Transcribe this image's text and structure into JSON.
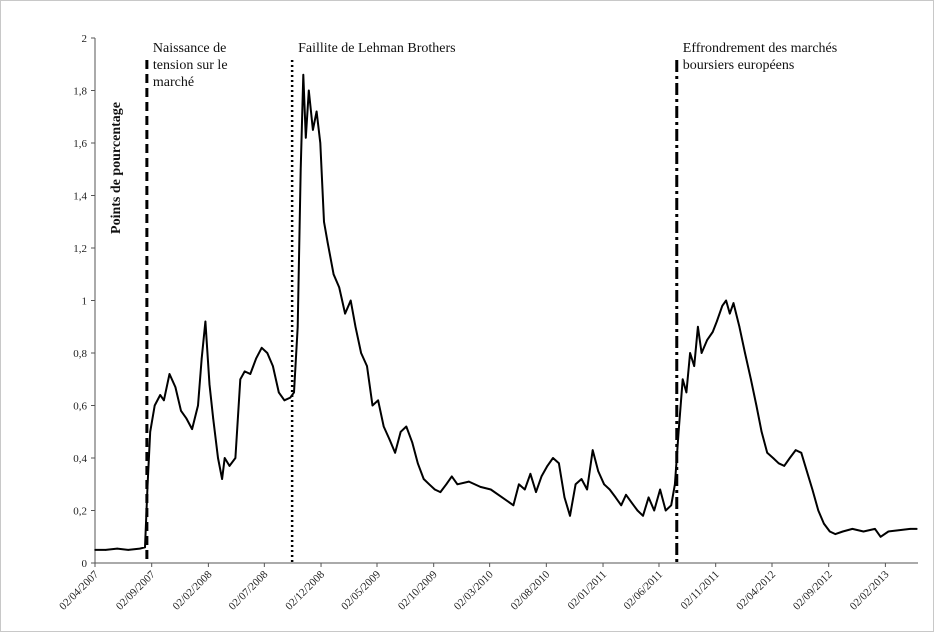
{
  "chart_data": {
    "type": "line",
    "title": "",
    "xlabel": "",
    "ylabel": "Points de pourcentage",
    "ylim": [
      0,
      2
    ],
    "y_ticks": [
      0,
      0.2,
      0.4,
      0.6,
      0.8,
      1,
      1.2,
      1.4,
      1.6,
      1.8,
      2
    ],
    "y_tick_labels": [
      "0",
      "0,2",
      "0,4",
      "0,6",
      "0,8",
      "1",
      "1,2",
      "1,4",
      "1,6",
      "1,8",
      "2"
    ],
    "x_tick_dates": [
      "2007-04-02",
      "2007-09-02",
      "2008-02-02",
      "2008-07-02",
      "2008-12-02",
      "2009-05-02",
      "2009-10-02",
      "2010-03-02",
      "2010-08-02",
      "2011-01-02",
      "2011-06-02",
      "2011-11-02",
      "2012-04-02",
      "2012-09-02",
      "2013-02-02"
    ],
    "x_tick_labels": [
      "02/04/2007",
      "02/09/2007",
      "02/02/2008",
      "02/07/2008",
      "02/12/2008",
      "02/05/2009",
      "02/10/2009",
      "02/03/2010",
      "02/08/2010",
      "02/01/2011",
      "02/06/2011",
      "02/11/2011",
      "02/04/2012",
      "02/09/2012",
      "02/02/2013"
    ],
    "xlim": [
      "2007-04-02",
      "2013-05-01"
    ],
    "grid": false,
    "legend": "none",
    "line_color": "#000000",
    "series": [
      {
        "values": [
          [
            "2007-04-02",
            0.05
          ],
          [
            "2007-05-01",
            0.05
          ],
          [
            "2007-06-01",
            0.055
          ],
          [
            "2007-07-01",
            0.05
          ],
          [
            "2007-08-01",
            0.055
          ],
          [
            "2007-08-15",
            0.06
          ],
          [
            "2007-08-22",
            0.3
          ],
          [
            "2007-08-29",
            0.5
          ],
          [
            "2007-09-10",
            0.6
          ],
          [
            "2007-09-25",
            0.64
          ],
          [
            "2007-10-05",
            0.62
          ],
          [
            "2007-10-20",
            0.72
          ],
          [
            "2007-11-05",
            0.67
          ],
          [
            "2007-11-20",
            0.58
          ],
          [
            "2007-12-05",
            0.55
          ],
          [
            "2007-12-20",
            0.51
          ],
          [
            "2008-01-05",
            0.6
          ],
          [
            "2008-01-15",
            0.78
          ],
          [
            "2008-01-25",
            0.92
          ],
          [
            "2008-02-05",
            0.68
          ],
          [
            "2008-02-15",
            0.55
          ],
          [
            "2008-02-28",
            0.4
          ],
          [
            "2008-03-10",
            0.32
          ],
          [
            "2008-03-17",
            0.4
          ],
          [
            "2008-03-30",
            0.37
          ],
          [
            "2008-04-15",
            0.4
          ],
          [
            "2008-04-28",
            0.7
          ],
          [
            "2008-05-10",
            0.73
          ],
          [
            "2008-05-25",
            0.72
          ],
          [
            "2008-06-10",
            0.78
          ],
          [
            "2008-06-25",
            0.82
          ],
          [
            "2008-07-10",
            0.8
          ],
          [
            "2008-07-25",
            0.75
          ],
          [
            "2008-08-10",
            0.65
          ],
          [
            "2008-08-25",
            0.62
          ],
          [
            "2008-09-10",
            0.63
          ],
          [
            "2008-09-20",
            0.65
          ],
          [
            "2008-09-30",
            0.9
          ],
          [
            "2008-10-08",
            1.5
          ],
          [
            "2008-10-15",
            1.86
          ],
          [
            "2008-10-22",
            1.62
          ],
          [
            "2008-10-30",
            1.8
          ],
          [
            "2008-11-10",
            1.65
          ],
          [
            "2008-11-20",
            1.72
          ],
          [
            "2008-11-30",
            1.6
          ],
          [
            "2008-12-10",
            1.3
          ],
          [
            "2008-12-20",
            1.22
          ],
          [
            "2009-01-05",
            1.1
          ],
          [
            "2009-01-20",
            1.05
          ],
          [
            "2009-02-05",
            0.95
          ],
          [
            "2009-02-20",
            1.0
          ],
          [
            "2009-03-05",
            0.9
          ],
          [
            "2009-03-20",
            0.8
          ],
          [
            "2009-04-05",
            0.75
          ],
          [
            "2009-04-20",
            0.6
          ],
          [
            "2009-05-05",
            0.62
          ],
          [
            "2009-05-20",
            0.52
          ],
          [
            "2009-06-05",
            0.47
          ],
          [
            "2009-06-20",
            0.42
          ],
          [
            "2009-07-05",
            0.5
          ],
          [
            "2009-07-20",
            0.52
          ],
          [
            "2009-08-05",
            0.46
          ],
          [
            "2009-08-20",
            0.38
          ],
          [
            "2009-09-05",
            0.32
          ],
          [
            "2009-09-20",
            0.3
          ],
          [
            "2009-10-05",
            0.28
          ],
          [
            "2009-10-20",
            0.27
          ],
          [
            "2009-11-05",
            0.3
          ],
          [
            "2009-11-20",
            0.33
          ],
          [
            "2009-12-05",
            0.3
          ],
          [
            "2010-01-05",
            0.31
          ],
          [
            "2010-02-05",
            0.29
          ],
          [
            "2010-03-05",
            0.28
          ],
          [
            "2010-04-05",
            0.25
          ],
          [
            "2010-05-05",
            0.22
          ],
          [
            "2010-05-20",
            0.3
          ],
          [
            "2010-06-05",
            0.28
          ],
          [
            "2010-06-20",
            0.34
          ],
          [
            "2010-07-05",
            0.27
          ],
          [
            "2010-07-20",
            0.33
          ],
          [
            "2010-08-05",
            0.37
          ],
          [
            "2010-08-20",
            0.4
          ],
          [
            "2010-09-05",
            0.38
          ],
          [
            "2010-09-20",
            0.25
          ],
          [
            "2010-10-05",
            0.18
          ],
          [
            "2010-10-20",
            0.3
          ],
          [
            "2010-11-05",
            0.32
          ],
          [
            "2010-11-20",
            0.28
          ],
          [
            "2010-12-05",
            0.43
          ],
          [
            "2010-12-20",
            0.35
          ],
          [
            "2011-01-05",
            0.3
          ],
          [
            "2011-01-20",
            0.28
          ],
          [
            "2011-02-05",
            0.25
          ],
          [
            "2011-02-20",
            0.22
          ],
          [
            "2011-03-05",
            0.26
          ],
          [
            "2011-03-20",
            0.23
          ],
          [
            "2011-04-05",
            0.2
          ],
          [
            "2011-04-20",
            0.18
          ],
          [
            "2011-05-05",
            0.25
          ],
          [
            "2011-05-20",
            0.2
          ],
          [
            "2011-06-05",
            0.28
          ],
          [
            "2011-06-20",
            0.2
          ],
          [
            "2011-07-05",
            0.22
          ],
          [
            "2011-07-15",
            0.3
          ],
          [
            "2011-07-25",
            0.5
          ],
          [
            "2011-08-05",
            0.7
          ],
          [
            "2011-08-15",
            0.65
          ],
          [
            "2011-08-25",
            0.8
          ],
          [
            "2011-09-05",
            0.75
          ],
          [
            "2011-09-15",
            0.9
          ],
          [
            "2011-09-25",
            0.8
          ],
          [
            "2011-10-10",
            0.85
          ],
          [
            "2011-10-25",
            0.88
          ],
          [
            "2011-11-05",
            0.92
          ],
          [
            "2011-11-20",
            0.98
          ],
          [
            "2011-11-30",
            1.0
          ],
          [
            "2011-12-10",
            0.95
          ],
          [
            "2011-12-20",
            0.99
          ],
          [
            "2012-01-05",
            0.9
          ],
          [
            "2012-01-20",
            0.8
          ],
          [
            "2012-02-05",
            0.7
          ],
          [
            "2012-02-20",
            0.6
          ],
          [
            "2012-03-05",
            0.5
          ],
          [
            "2012-03-20",
            0.42
          ],
          [
            "2012-04-05",
            0.4
          ],
          [
            "2012-04-20",
            0.38
          ],
          [
            "2012-05-05",
            0.37
          ],
          [
            "2012-05-20",
            0.4
          ],
          [
            "2012-06-05",
            0.43
          ],
          [
            "2012-06-20",
            0.42
          ],
          [
            "2012-07-05",
            0.35
          ],
          [
            "2012-07-20",
            0.28
          ],
          [
            "2012-08-05",
            0.2
          ],
          [
            "2012-08-20",
            0.15
          ],
          [
            "2012-09-05",
            0.12
          ],
          [
            "2012-09-20",
            0.11
          ],
          [
            "2012-10-10",
            0.12
          ],
          [
            "2012-11-05",
            0.13
          ],
          [
            "2012-12-05",
            0.12
          ],
          [
            "2013-01-05",
            0.13
          ],
          [
            "2013-01-20",
            0.1
          ],
          [
            "2013-02-10",
            0.12
          ],
          [
            "2013-03-10",
            0.125
          ],
          [
            "2013-04-10",
            0.13
          ],
          [
            "2013-04-28",
            0.13
          ]
        ]
      }
    ],
    "events": [
      {
        "date": "2007-08-20",
        "style": "dashed",
        "label_lines": [
          "Naissance de",
          "tension  sur le",
          "marché"
        ]
      },
      {
        "date": "2008-09-15",
        "style": "dotted",
        "label_lines": [
          "Faillite  de Lehman Brothers"
        ]
      },
      {
        "date": "2011-07-20",
        "style": "dashdot",
        "label_lines": [
          "Effrondrement  des marchés",
          "boursiers européens"
        ]
      }
    ]
  }
}
